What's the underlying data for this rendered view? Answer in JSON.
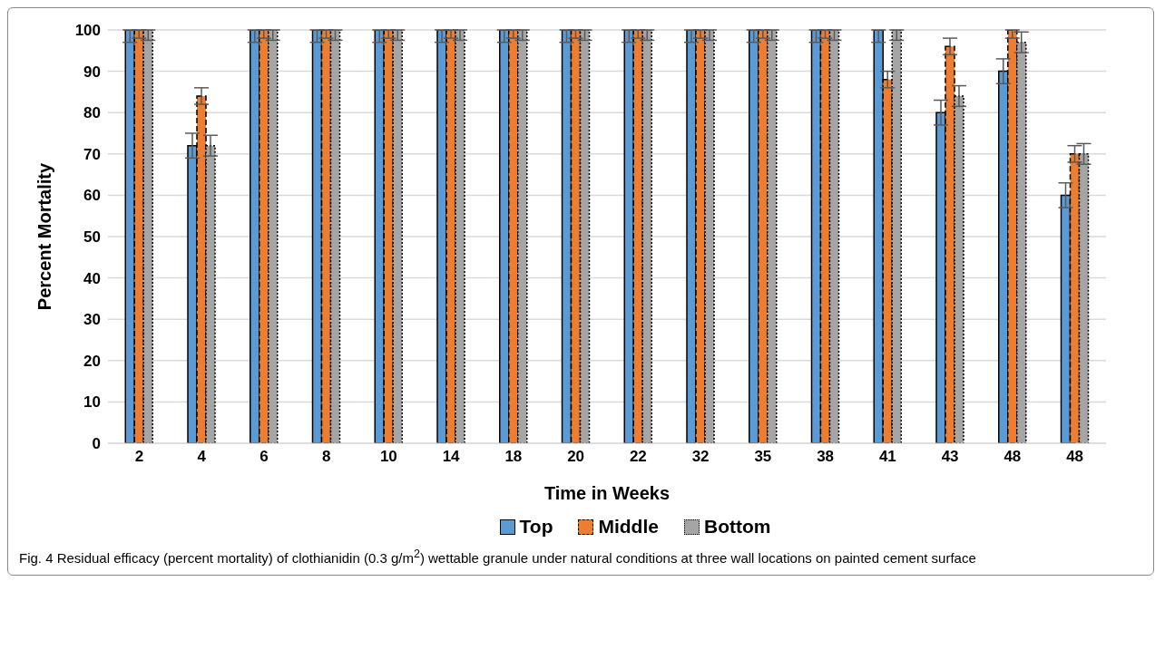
{
  "chart_data": {
    "type": "bar",
    "xlabel": "Time in Weeks",
    "ylabel": "Percent Mortality",
    "categories": [
      "2",
      "4",
      "6",
      "8",
      "10",
      "14",
      "18",
      "20",
      "22",
      "32",
      "35",
      "38",
      "41",
      "43",
      "48",
      "48"
    ],
    "series": [
      {
        "name": "Top",
        "color": "#5b9bd5",
        "values": [
          100,
          72,
          100,
          100,
          100,
          100,
          100,
          100,
          100,
          100,
          100,
          100,
          100,
          80,
          90,
          60
        ],
        "errors": [
          [
            97,
            100
          ],
          3,
          [
            97,
            100
          ],
          [
            97,
            100
          ],
          [
            97,
            100
          ],
          [
            97,
            100
          ],
          [
            97,
            100
          ],
          [
            97,
            100
          ],
          [
            97,
            100
          ],
          [
            97,
            100
          ],
          [
            97,
            100
          ],
          [
            97,
            100
          ],
          [
            97,
            100
          ],
          3,
          3,
          3
        ]
      },
      {
        "name": "Middle",
        "color": "#ed7d31",
        "values": [
          100,
          84,
          100,
          100,
          100,
          100,
          100,
          100,
          100,
          100,
          100,
          100,
          88,
          96,
          100,
          70
        ],
        "errors": [
          [
            98,
            100
          ],
          2,
          [
            98,
            100
          ],
          [
            98,
            100
          ],
          [
            98,
            100
          ],
          [
            98,
            100
          ],
          [
            98,
            100
          ],
          [
            98,
            100
          ],
          [
            98,
            100
          ],
          [
            98,
            100
          ],
          [
            98,
            100
          ],
          [
            98,
            100
          ],
          2,
          2,
          [
            98,
            100
          ],
          2
        ]
      },
      {
        "name": "Bottom",
        "color": "#a5a5a5",
        "values": [
          100,
          72,
          100,
          100,
          100,
          100,
          100,
          100,
          100,
          100,
          100,
          100,
          100,
          84,
          97,
          70
        ],
        "errors": [
          [
            97.5,
            100
          ],
          2.5,
          [
            97.5,
            100
          ],
          [
            97.5,
            100
          ],
          [
            97.5,
            100
          ],
          [
            97.5,
            100
          ],
          [
            97.5,
            100
          ],
          [
            97.5,
            100
          ],
          [
            97.5,
            100
          ],
          [
            97.5,
            100
          ],
          [
            97.5,
            100
          ],
          [
            97.5,
            100
          ],
          [
            97.5,
            100
          ],
          2.5,
          2.5,
          2.5
        ]
      }
    ],
    "ylim": [
      0,
      100
    ],
    "yticks": [
      0,
      10,
      20,
      30,
      40,
      50,
      60,
      70,
      80,
      90,
      100
    ],
    "grid": "y",
    "legend": "bottom",
    "annotations": [
      "Fig. 4  Residual efficacy (percent mortality) of clothianidin (0.3 g/m$^{2}$) wettable granule under natural conditions at three wall locations on painted cement surface"
    ]
  }
}
